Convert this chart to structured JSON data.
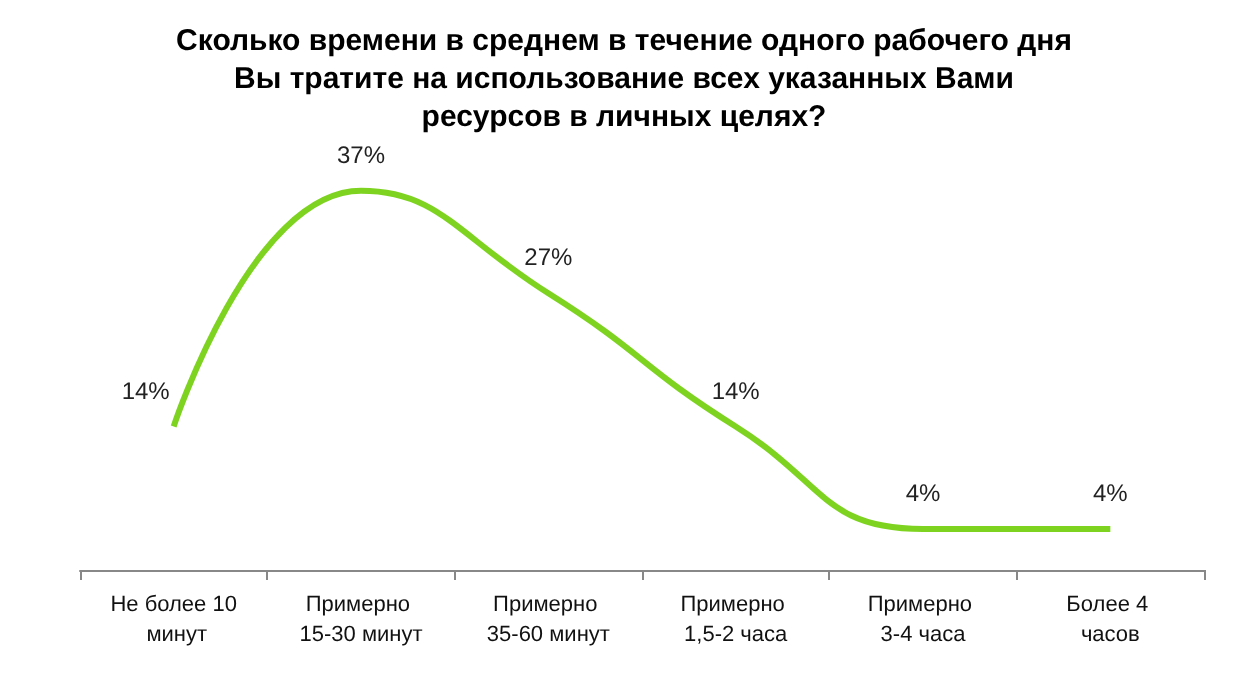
{
  "chart_data": {
    "type": "line",
    "title": "Сколько времени в среднем в течение одного рабочего дня\nВы тратите на использование всех указанных Вами\nресурсов в личных целях?",
    "categories": [
      "Не более 10 минут",
      "Примерно 15-30 минут",
      "Примерно 35-60 минут",
      "Примерно 1,5-2 часа",
      "Примерно 3-4 часа",
      "Более 4 часов"
    ],
    "series": [
      {
        "color": "#7ed321",
        "values": [
          14,
          37,
          27,
          14,
          4,
          4
        ],
        "value_labels": [
          "14%",
          "37%",
          "27%",
          "14%",
          "4%",
          "4%"
        ]
      }
    ],
    "marker": "none",
    "line_style": "solid"
  }
}
